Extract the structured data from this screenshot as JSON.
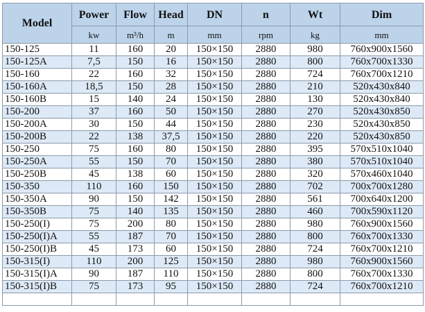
{
  "headers": [
    {
      "label": "Model",
      "unit": ""
    },
    {
      "label": "Power",
      "unit": "kw"
    },
    {
      "label": "Flow",
      "unit": "m³/h"
    },
    {
      "label": "Head",
      "unit": "m"
    },
    {
      "label": "DN",
      "unit": "mm"
    },
    {
      "label": "n",
      "unit": "rpm"
    },
    {
      "label": "Wt",
      "unit": "kg"
    },
    {
      "label": "Dim",
      "unit": "mm"
    }
  ],
  "rows": [
    [
      "150-125",
      "11",
      "160",
      "20",
      "150×150",
      "2880",
      "980",
      "760x900x1560"
    ],
    [
      "150-125A",
      "7,5",
      "150",
      "16",
      "150×150",
      "2880",
      "800",
      "760x700x1330"
    ],
    [
      "150-160",
      "22",
      "160",
      "32",
      "150×150",
      "2880",
      "724",
      "760x700x1210"
    ],
    [
      "150-160A",
      "18,5",
      "150",
      "28",
      "150×150",
      "2880",
      "210",
      "520x430x840"
    ],
    [
      "150-160B",
      "15",
      "140",
      "24",
      "150×150",
      "2880",
      "130",
      "520x430x840"
    ],
    [
      "150-200",
      "37",
      "160",
      "50",
      "150×150",
      "2880",
      "270",
      "520x430x850"
    ],
    [
      "150-200A",
      "30",
      "150",
      "44",
      "150×150",
      "2880",
      "230",
      "520x430x850"
    ],
    [
      "150-200B",
      "22",
      "138",
      "37,5",
      "150×150",
      "2880",
      "220",
      "520x430x850"
    ],
    [
      "150-250",
      "75",
      "160",
      "80",
      "150×150",
      "2880",
      "395",
      "570x510x1040"
    ],
    [
      "150-250A",
      "55",
      "150",
      "70",
      "150×150",
      "2880",
      "380",
      "570x510x1040"
    ],
    [
      "150-250B",
      "45",
      "138",
      "60",
      "150×150",
      "2880",
      "320",
      "570x460x1040"
    ],
    [
      "150-350",
      "110",
      "160",
      "150",
      "150×150",
      "2880",
      "702",
      "700x700x1280"
    ],
    [
      "150-350A",
      "90",
      "150",
      "142",
      "150×150",
      "2880",
      "561",
      "700x640x1200"
    ],
    [
      "150-350B",
      "75",
      "140",
      "135",
      "150×150",
      "2880",
      "460",
      "700x590x1120"
    ],
    [
      "150-250(I)",
      "75",
      "200",
      "80",
      "150×150",
      "2880",
      "980",
      "760x900x1560"
    ],
    [
      "150-250(I)A",
      "55",
      "187",
      "70",
      "150×150",
      "2880",
      "800",
      "760x700x1330"
    ],
    [
      "150-250(I)B",
      "45",
      "173",
      "60",
      "150×150",
      "2880",
      "724",
      "760x700x1210"
    ],
    [
      "150-315(I)",
      "110",
      "200",
      "125",
      "150×150",
      "2880",
      "980",
      "760x900x1560"
    ],
    [
      "150-315(I)A",
      "90",
      "187",
      "110",
      "150×150",
      "2880",
      "800",
      "760x700x1330"
    ],
    [
      "150-315(I)B",
      "75",
      "173",
      "95",
      "150×150",
      "2880",
      "724",
      "760x700x1210"
    ]
  ]
}
